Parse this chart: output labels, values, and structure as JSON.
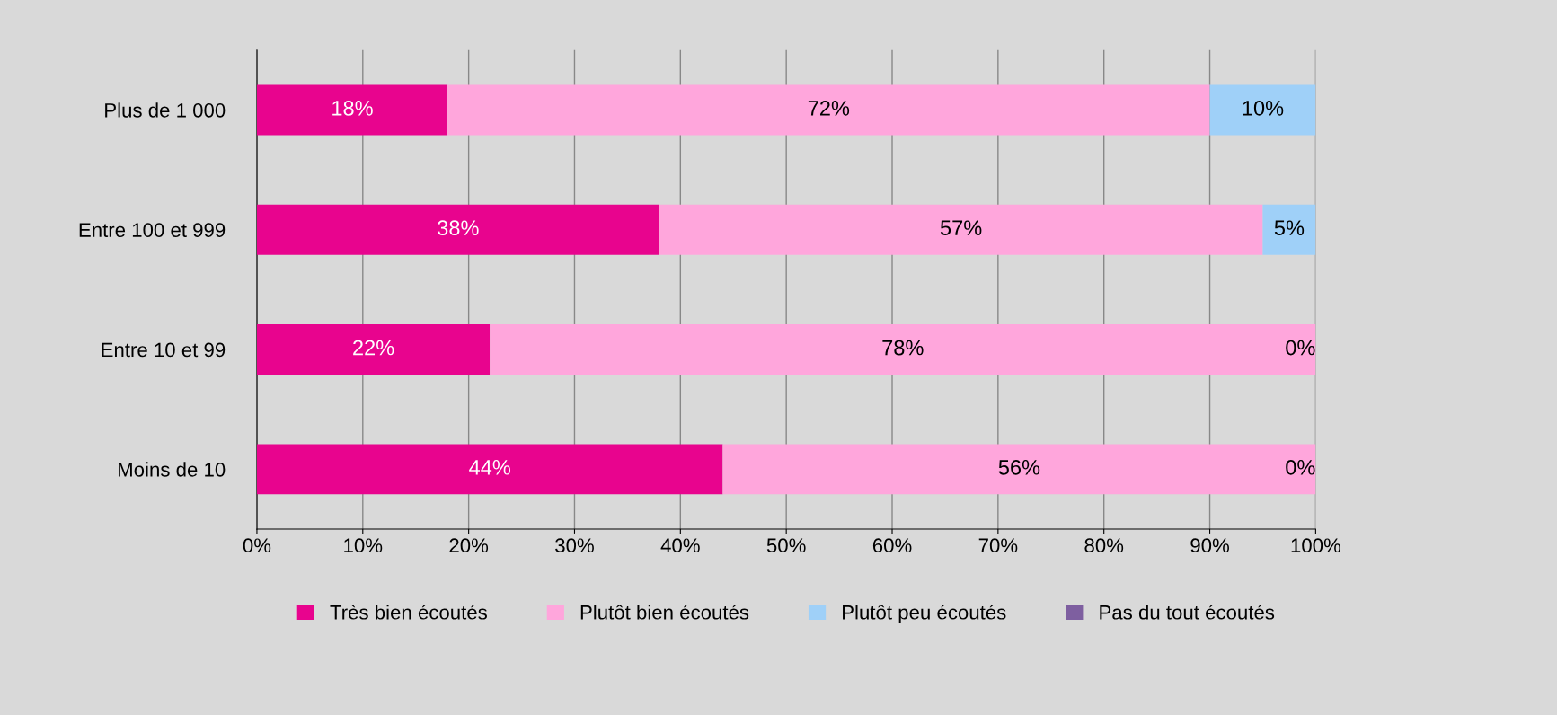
{
  "chart_data": {
    "type": "bar",
    "orientation": "horizontal",
    "stacked": true,
    "categories": [
      "Plus de 1 000",
      "Entre 100 et 999",
      "Entre 10 et 99",
      "Moins de 10"
    ],
    "series": [
      {
        "name": "Très bien écoutés",
        "color": "#e8048e",
        "values": [
          18,
          38,
          22,
          44
        ],
        "value_labels": [
          "18%",
          "38%",
          "22%",
          "44%"
        ]
      },
      {
        "name": "Plutôt bien écoutés",
        "color": "#ffa6dc",
        "values": [
          72,
          57,
          78,
          56
        ],
        "value_labels": [
          "72%",
          "57%",
          "78%",
          "56%"
        ]
      },
      {
        "name": "Plutôt peu écoutés",
        "color": "#9fd0f8",
        "values": [
          10,
          5,
          0,
          0
        ],
        "value_labels": [
          "10%",
          "5%",
          "0%",
          "0%"
        ]
      },
      {
        "name": "Pas du tout écoutés",
        "color": "#7e5fa0",
        "values": [
          0,
          0,
          0,
          0
        ],
        "value_labels": [
          null,
          null,
          null,
          null
        ]
      }
    ],
    "xlim": [
      0,
      100
    ],
    "xticks": [
      {
        "value": 0,
        "label": "0%"
      },
      {
        "value": 10,
        "label": "10%"
      },
      {
        "value": 20,
        "label": "20%"
      },
      {
        "value": 30,
        "label": "30%"
      },
      {
        "value": 40,
        "label": "40%"
      },
      {
        "value": 50,
        "label": "50%"
      },
      {
        "value": 60,
        "label": "60%"
      },
      {
        "value": 70,
        "label": "70%"
      },
      {
        "value": 80,
        "label": "80%"
      },
      {
        "value": 90,
        "label": "90%"
      },
      {
        "value": 100,
        "label": "100%"
      }
    ],
    "grid": "x",
    "legend": "bottom"
  }
}
